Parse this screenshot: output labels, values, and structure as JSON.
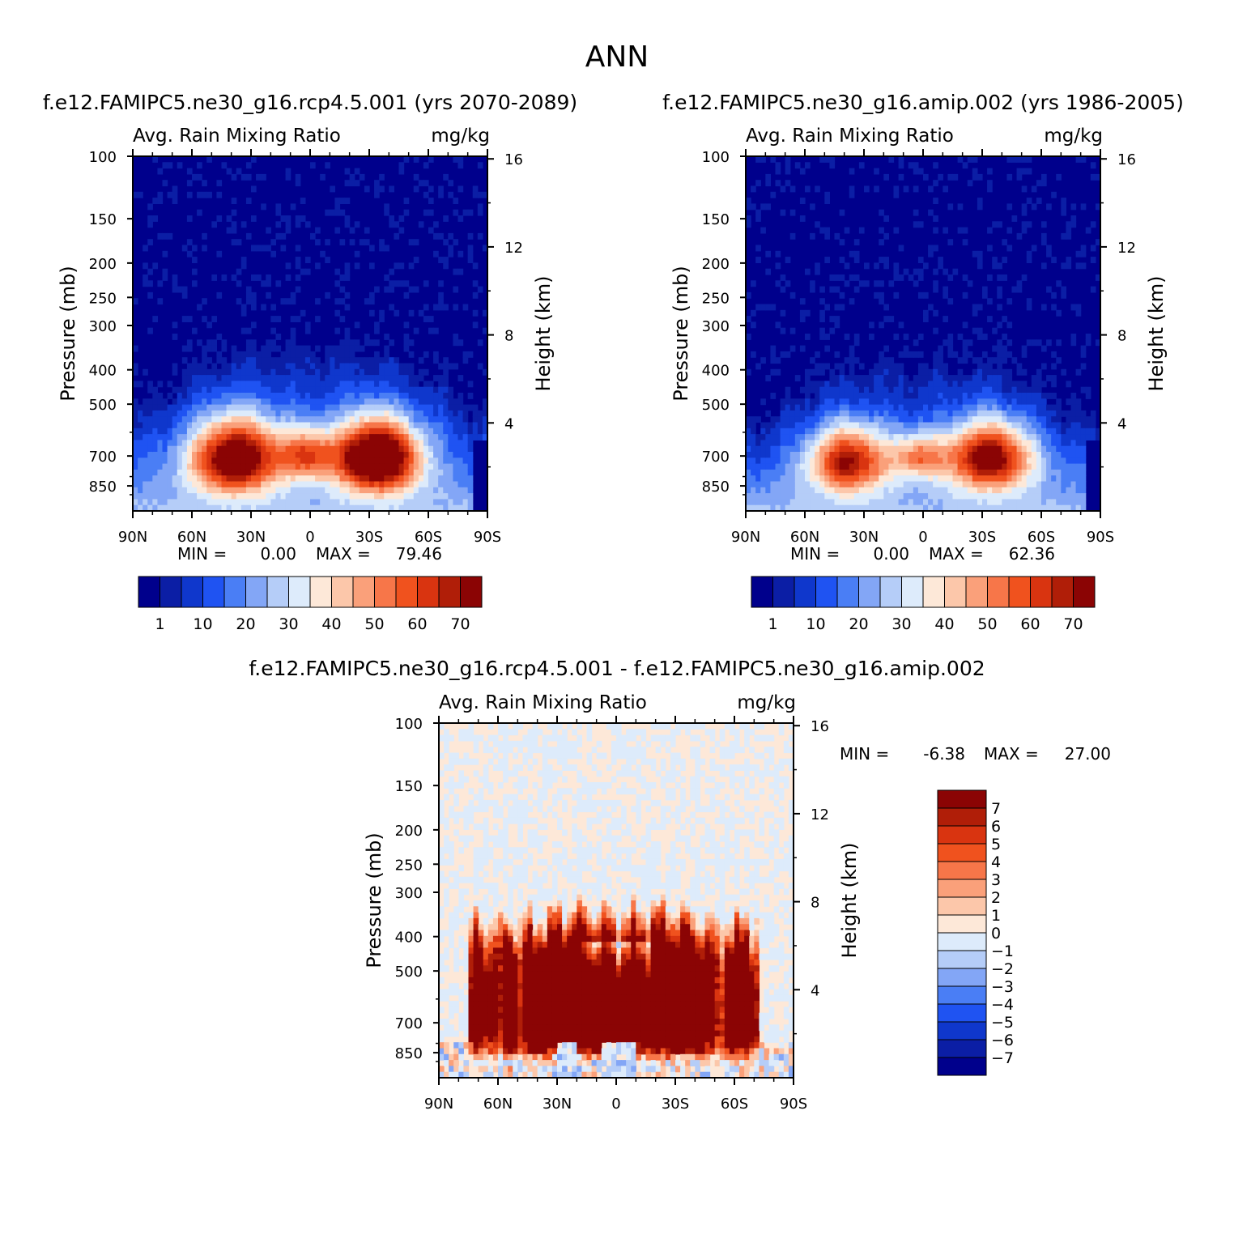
{
  "page": {
    "title": "ANN"
  },
  "colors": {
    "cbar_abs": [
      "#00008c",
      "#0b1ea5",
      "#0f37cc",
      "#1f53f2",
      "#4a7ef5",
      "#83a6f6",
      "#b5cdf8",
      "#ddebfb",
      "#fde8d8",
      "#fcc7aa",
      "#faa07a",
      "#f77649",
      "#f0521e",
      "#d93410",
      "#b01e08",
      "#8b0404"
    ],
    "cbar_diff": [
      "#00008c",
      "#0b1ea5",
      "#0f37cc",
      "#1f53f2",
      "#4a7ef5",
      "#83a6f6",
      "#b5cdf8",
      "#ddebfb",
      "#fde8d8",
      "#fcc7aa",
      "#faa07a",
      "#f77649",
      "#f0521e",
      "#d93410",
      "#b01e08",
      "#8b0404"
    ]
  },
  "chart_data": [
    {
      "id": "case",
      "type": "heatmap",
      "title": "f.e12.FAMIPC5.ne30_g16.rcp4.5.001 (yrs 2070-2089)",
      "var_label": "Avg. Rain Mixing Ratio",
      "units": "mg/kg",
      "ylabel": "Pressure (mb)",
      "y2label": "Height (km)",
      "pressure_ticks": [
        "100",
        "150",
        "200",
        "250",
        "300",
        "400",
        "500",
        "700",
        "850"
      ],
      "height_ticks": [
        "16",
        "12",
        "8",
        "4"
      ],
      "lat_ticks": [
        "90N",
        "60N",
        "30N",
        "0",
        "30S",
        "60S",
        "90S"
      ],
      "min_label": "MIN =",
      "min_value": "0.00",
      "max_label": "MAX =",
      "max_value": "79.46",
      "colorbar_labels": [
        "1",
        "10",
        "20",
        "30",
        "40",
        "50",
        "60",
        "70"
      ],
      "blobs": [
        {
          "lat": 38,
          "p": 705,
          "max": 68,
          "rlat": 16,
          "rp": 120
        },
        {
          "lat": -34,
          "p": 705,
          "max": 79.46,
          "rlat": 15,
          "rp": 115
        },
        {
          "lat": 2,
          "p": 690,
          "max": 36,
          "rlat": 10,
          "rp": 80
        }
      ],
      "top_km": 7.5
    },
    {
      "id": "control",
      "type": "heatmap",
      "title": "f.e12.FAMIPC5.ne30_g16.amip.002 (yrs 1986-2005)",
      "var_label": "Avg. Rain Mixing Ratio",
      "units": "mg/kg",
      "ylabel": "Pressure (mb)",
      "y2label": "Height (km)",
      "pressure_ticks": [
        "100",
        "150",
        "200",
        "250",
        "300",
        "400",
        "500",
        "700",
        "850"
      ],
      "height_ticks": [
        "16",
        "12",
        "8",
        "4"
      ],
      "lat_ticks": [
        "90N",
        "60N",
        "30N",
        "0",
        "30S",
        "60S",
        "90S"
      ],
      "min_label": "MIN =",
      "min_value": "0.00",
      "max_label": "MAX =",
      "max_value": "62.36",
      "colorbar_labels": [
        "1",
        "10",
        "20",
        "30",
        "40",
        "50",
        "60",
        "70"
      ],
      "blobs": [
        {
          "lat": 38,
          "p": 720,
          "max": 55,
          "rlat": 14,
          "rp": 110
        },
        {
          "lat": -34,
          "p": 705,
          "max": 62.36,
          "rlat": 15,
          "rp": 110
        },
        {
          "lat": 2,
          "p": 700,
          "max": 33,
          "rlat": 10,
          "rp": 70
        }
      ],
      "top_km": 6.6
    },
    {
      "id": "difference",
      "type": "heatmap",
      "title": "f.e12.FAMIPC5.ne30_g16.rcp4.5.001 - f.e12.FAMIPC5.ne30_g16.amip.002",
      "var_label": "Avg. Rain Mixing Ratio",
      "units": "mg/kg",
      "ylabel": "Pressure (mb)",
      "y2label": "Height (km)",
      "pressure_ticks": [
        "100",
        "150",
        "200",
        "250",
        "300",
        "400",
        "500",
        "700",
        "850"
      ],
      "height_ticks": [
        "16",
        "12",
        "8",
        "4"
      ],
      "lat_ticks": [
        "90N",
        "60N",
        "30N",
        "0",
        "30S",
        "60S",
        "90S"
      ],
      "min_label": "MIN =",
      "min_value": "-6.38",
      "max_label": "MAX =",
      "max_value": "27.00",
      "colorbar_labels": [
        "7",
        "6",
        "5",
        "4",
        "3",
        "2",
        "1",
        "0",
        "-1",
        "-2",
        "-3",
        "-4",
        "-5",
        "-6",
        "-7"
      ]
    }
  ]
}
